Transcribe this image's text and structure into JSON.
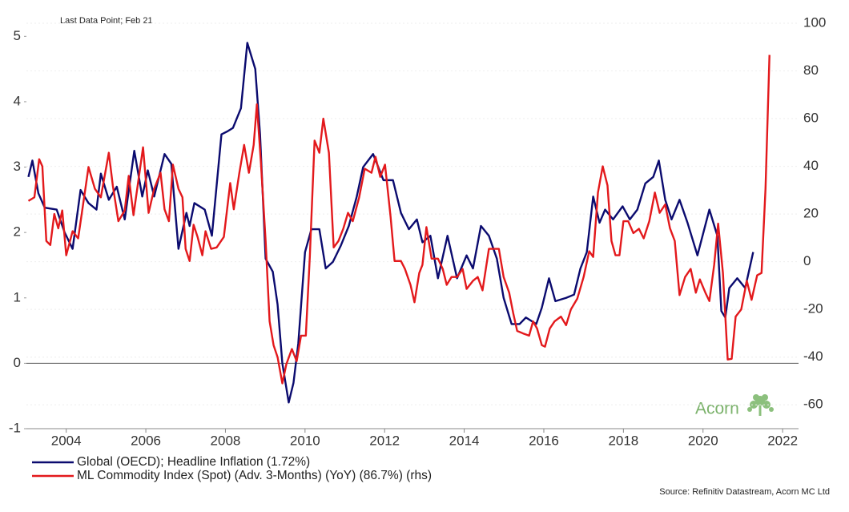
{
  "chart_data": {
    "type": "line",
    "subtitle": "Last Data Point; Feb 21",
    "source": "Source: Refinitiv Datastream, Acorn MC Ltd",
    "logo_text": "Acorn",
    "xlim": [
      2003,
      2022.4
    ],
    "xticks": [
      2004,
      2006,
      2008,
      2010,
      2012,
      2014,
      2016,
      2018,
      2020,
      2022
    ],
    "ylim": [
      -1,
      5.2
    ],
    "yticks": [
      -1,
      0,
      1,
      2,
      3,
      4,
      5
    ],
    "y2lim": [
      -70,
      100
    ],
    "y2ticks": [
      -60,
      -40,
      -20,
      0,
      20,
      40,
      60,
      80,
      100
    ],
    "hlines": [
      0
    ],
    "legend": "bottom-left",
    "series": [
      {
        "name": "Global (OECD); Headline Inflation (1.72%)",
        "color": "#0b0b6f",
        "axis": "y",
        "x": [
          2003.05,
          2003.15,
          2003.3,
          2003.46,
          2003.76,
          2003.96,
          2004.16,
          2004.36,
          2004.56,
          2004.76,
          2004.87,
          2005.07,
          2005.27,
          2005.47,
          2005.71,
          2005.91,
          2006.05,
          2006.21,
          2006.47,
          2006.64,
          2006.82,
          2007.02,
          2007.1,
          2007.22,
          2007.48,
          2007.66,
          2007.9,
          2008.06,
          2008.19,
          2008.39,
          2008.55,
          2008.75,
          2008.87,
          2009.01,
          2009.19,
          2009.31,
          2009.43,
          2009.59,
          2009.71,
          2009.83,
          2010.0,
          2010.16,
          2010.36,
          2010.52,
          2010.7,
          2010.9,
          2011.1,
          2011.3,
          2011.46,
          2011.71,
          2011.97,
          2012.21,
          2012.41,
          2012.61,
          2012.81,
          2012.95,
          2013.15,
          2013.34,
          2013.58,
          2013.82,
          2014.06,
          2014.22,
          2014.42,
          2014.62,
          2014.82,
          2014.99,
          2015.19,
          2015.39,
          2015.55,
          2015.81,
          2015.95,
          2016.13,
          2016.29,
          2016.56,
          2016.76,
          2016.92,
          2017.08,
          2017.24,
          2017.4,
          2017.54,
          2017.74,
          2017.98,
          2018.16,
          2018.35,
          2018.55,
          2018.75,
          2018.89,
          2019.05,
          2019.21,
          2019.41,
          2019.61,
          2019.86,
          2020.16,
          2020.36,
          2020.46,
          2020.56,
          2020.66,
          2020.86,
          2021.06,
          2021.26
        ],
        "values": [
          2.85,
          3.1,
          2.6,
          2.38,
          2.35,
          2.0,
          1.75,
          2.65,
          2.45,
          2.35,
          2.9,
          2.5,
          2.7,
          2.2,
          3.25,
          2.55,
          2.95,
          2.55,
          3.2,
          3.05,
          1.75,
          2.3,
          2.1,
          2.45,
          2.35,
          1.95,
          3.5,
          3.55,
          3.6,
          3.9,
          4.9,
          4.5,
          3.5,
          1.6,
          1.4,
          0.9,
          0.0,
          -0.6,
          -0.3,
          0.3,
          1.7,
          2.05,
          2.05,
          1.45,
          1.55,
          1.8,
          2.1,
          2.55,
          3.0,
          3.2,
          2.8,
          2.8,
          2.3,
          2.05,
          2.2,
          1.85,
          1.95,
          1.3,
          1.95,
          1.3,
          1.65,
          1.45,
          2.1,
          1.95,
          1.6,
          1.0,
          0.6,
          0.6,
          0.7,
          0.6,
          0.85,
          1.3,
          0.95,
          1.0,
          1.05,
          1.45,
          1.7,
          2.55,
          2.15,
          2.35,
          2.2,
          2.4,
          2.2,
          2.35,
          2.75,
          2.85,
          3.1,
          2.5,
          2.2,
          2.5,
          2.15,
          1.65,
          2.35,
          1.95,
          0.8,
          0.7,
          1.15,
          1.3,
          1.15,
          1.7
        ]
      },
      {
        "name": "ML Commodity Index (Spot) (Adv. 3-Months) (YoY) (86.7%) (rhs)",
        "color": "#e3191c",
        "axis": "y2",
        "x": [
          2003.05,
          2003.2,
          2003.32,
          2003.4,
          2003.5,
          2003.6,
          2003.7,
          2003.8,
          2003.9,
          2004.0,
          2004.16,
          2004.3,
          2004.56,
          2004.72,
          2004.87,
          2005.07,
          2005.17,
          2005.31,
          2005.47,
          2005.57,
          2005.69,
          2005.93,
          2006.07,
          2006.21,
          2006.37,
          2006.47,
          2006.58,
          2006.68,
          2006.82,
          2006.92,
          2007.0,
          2007.1,
          2007.2,
          2007.3,
          2007.42,
          2007.5,
          2007.64,
          2007.78,
          2007.96,
          2008.12,
          2008.21,
          2008.35,
          2008.47,
          2008.59,
          2008.71,
          2008.79,
          2008.89,
          2009.01,
          2009.11,
          2009.21,
          2009.31,
          2009.43,
          2009.53,
          2009.67,
          2009.79,
          2009.9,
          2010.02,
          2010.12,
          2010.24,
          2010.36,
          2010.46,
          2010.6,
          2010.72,
          2010.84,
          2010.96,
          2011.08,
          2011.2,
          2011.36,
          2011.5,
          2011.67,
          2011.77,
          2011.89,
          2012.01,
          2012.15,
          2012.25,
          2012.41,
          2012.51,
          2012.65,
          2012.75,
          2012.87,
          2012.95,
          2013.05,
          2013.18,
          2013.34,
          2013.46,
          2013.56,
          2013.68,
          2013.82,
          2013.96,
          2014.06,
          2014.22,
          2014.34,
          2014.46,
          2014.62,
          2014.76,
          2014.87,
          2014.99,
          2015.13,
          2015.23,
          2015.33,
          2015.47,
          2015.63,
          2015.73,
          2015.83,
          2015.95,
          2016.03,
          2016.15,
          2016.27,
          2016.43,
          2016.56,
          2016.68,
          2016.84,
          2017.0,
          2017.14,
          2017.24,
          2017.36,
          2017.48,
          2017.6,
          2017.7,
          2017.8,
          2017.9,
          2018.0,
          2018.12,
          2018.25,
          2018.39,
          2018.51,
          2018.65,
          2018.79,
          2018.91,
          2019.05,
          2019.17,
          2019.29,
          2019.41,
          2019.55,
          2019.69,
          2019.82,
          2019.92,
          2020.06,
          2020.16,
          2020.28,
          2020.38,
          2020.5,
          2020.62,
          2020.72,
          2020.82,
          2020.96,
          2021.1,
          2021.22,
          2021.36,
          2021.47,
          2021.57,
          2021.67
        ],
        "values": [
          25.5,
          27,
          43,
          40,
          8.7,
          7,
          20,
          14,
          21.5,
          2.7,
          12.8,
          9.8,
          39.7,
          30.6,
          27,
          45.7,
          32,
          17,
          21.5,
          36,
          19.5,
          48,
          20.5,
          30.6,
          37.3,
          22,
          17,
          40.7,
          30.6,
          27,
          5.4,
          0.3,
          15.5,
          10.4,
          2.7,
          12.8,
          5.4,
          6,
          10.4,
          33,
          22,
          37.3,
          49,
          37.3,
          49,
          66,
          42,
          8.7,
          -25,
          -35,
          -40,
          -51,
          -43,
          -36.6,
          -41.7,
          -31,
          -31,
          2,
          50.8,
          45.7,
          60,
          45.7,
          6,
          8.7,
          13.8,
          20.5,
          17,
          27,
          39,
          37.3,
          44,
          35.6,
          40.7,
          18.8,
          0.3,
          0.3,
          -3,
          -9.7,
          -17,
          -4.7,
          -1.3,
          14.5,
          1.3,
          1.3,
          -3,
          -9.7,
          -6.4,
          -6.4,
          -3,
          -11.4,
          -8,
          -6.4,
          -12,
          5.4,
          5.4,
          5.4,
          -6.4,
          -13,
          -21.5,
          -29,
          -30,
          -31,
          -25,
          -28,
          -35,
          -35.6,
          -28,
          -25,
          -23,
          -26.6,
          -20,
          -15.5,
          -6.4,
          4.4,
          2,
          29,
          40,
          32,
          8.7,
          2.7,
          2.7,
          17,
          17,
          12,
          13.8,
          9.8,
          17,
          29,
          20.5,
          24,
          14,
          8.7,
          -14,
          -6.4,
          -3,
          -13,
          -7.4,
          -13,
          -16.5,
          -1.3,
          16,
          -4.7,
          -41,
          -40.7,
          -23,
          -20,
          -8,
          -16,
          -5.7,
          -4.7,
          30.6,
          86.7
        ]
      }
    ]
  }
}
